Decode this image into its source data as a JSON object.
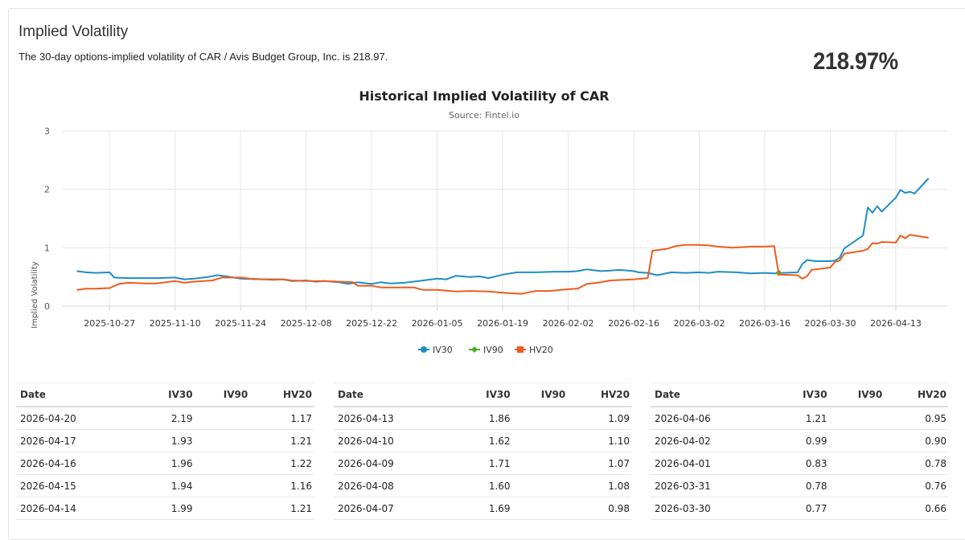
{
  "header": {
    "title": "Implied Volatility",
    "description": "The 30-day options-implied volatility of CAR / Avis Budget Group, Inc. is 218.97.",
    "big_value": "218.97%"
  },
  "chart_data": {
    "type": "line",
    "title": "Historical Implied Volatility of CAR",
    "subtitle": "Source: Fintel.io",
    "ylabel": "Implied Volatility",
    "xlabel": "",
    "ylim": [
      0,
      3
    ],
    "yticks": [
      0,
      1,
      2,
      3
    ],
    "xlim": [
      "2025-10-17",
      "2026-04-24"
    ],
    "xticks": [
      "2025-10-27",
      "2025-11-10",
      "2025-11-24",
      "2025-12-08",
      "2025-12-22",
      "2026-01-05",
      "2026-01-19",
      "2026-02-02",
      "2026-02-16",
      "2026-03-02",
      "2026-03-16",
      "2026-03-30",
      "2026-04-13"
    ],
    "grid": true,
    "legend_position": "bottom",
    "series": [
      {
        "name": "IV30",
        "color": "#1f8dc4",
        "points": [
          [
            "2025-10-20",
            0.6
          ],
          [
            "2025-10-22",
            0.58
          ],
          [
            "2025-10-24",
            0.57
          ],
          [
            "2025-10-27",
            0.58
          ],
          [
            "2025-10-28",
            0.49
          ],
          [
            "2025-10-31",
            0.48
          ],
          [
            "2025-11-03",
            0.48
          ],
          [
            "2025-11-06",
            0.48
          ],
          [
            "2025-11-10",
            0.49
          ],
          [
            "2025-11-12",
            0.46
          ],
          [
            "2025-11-14",
            0.47
          ],
          [
            "2025-11-17",
            0.5
          ],
          [
            "2025-11-19",
            0.53
          ],
          [
            "2025-11-21",
            0.51
          ],
          [
            "2025-11-24",
            0.47
          ],
          [
            "2025-11-28",
            0.46
          ],
          [
            "2025-12-03",
            0.46
          ],
          [
            "2025-12-05",
            0.43
          ],
          [
            "2025-12-08",
            0.44
          ],
          [
            "2025-12-10",
            0.42
          ],
          [
            "2025-12-12",
            0.43
          ],
          [
            "2025-12-15",
            0.41
          ],
          [
            "2025-12-17",
            0.38
          ],
          [
            "2025-12-19",
            0.41
          ],
          [
            "2025-12-22",
            0.38
          ],
          [
            "2025-12-24",
            0.41
          ],
          [
            "2025-12-26",
            0.39
          ],
          [
            "2025-12-29",
            0.4
          ],
          [
            "2025-12-31",
            0.42
          ],
          [
            "2026-01-05",
            0.47
          ],
          [
            "2026-01-07",
            0.46
          ],
          [
            "2026-01-09",
            0.52
          ],
          [
            "2026-01-12",
            0.5
          ],
          [
            "2026-01-14",
            0.51
          ],
          [
            "2026-01-16",
            0.48
          ],
          [
            "2026-01-19",
            0.54
          ],
          [
            "2026-01-22",
            0.58
          ],
          [
            "2026-01-26",
            0.58
          ],
          [
            "2026-01-30",
            0.59
          ],
          [
            "2026-02-02",
            0.59
          ],
          [
            "2026-02-04",
            0.6
          ],
          [
            "2026-02-06",
            0.63
          ],
          [
            "2026-02-09",
            0.6
          ],
          [
            "2026-02-11",
            0.61
          ],
          [
            "2026-02-13",
            0.62
          ],
          [
            "2026-02-16",
            0.6
          ],
          [
            "2026-02-17",
            0.58
          ],
          [
            "2026-02-19",
            0.57
          ],
          [
            "2026-02-21",
            0.53
          ],
          [
            "2026-02-24",
            0.58
          ],
          [
            "2026-02-27",
            0.57
          ],
          [
            "2026-03-02",
            0.58
          ],
          [
            "2026-03-04",
            0.57
          ],
          [
            "2026-03-06",
            0.59
          ],
          [
            "2026-03-10",
            0.58
          ],
          [
            "2026-03-13",
            0.56
          ],
          [
            "2026-03-16",
            0.57
          ],
          [
            "2026-03-18",
            0.56
          ],
          [
            "2026-03-20",
            0.57
          ],
          [
            "2026-03-23",
            0.58
          ],
          [
            "2026-03-24",
            0.72
          ],
          [
            "2026-03-25",
            0.79
          ],
          [
            "2026-03-27",
            0.77
          ],
          [
            "2026-03-30",
            0.77
          ],
          [
            "2026-03-31",
            0.78
          ],
          [
            "2026-04-01",
            0.83
          ],
          [
            "2026-04-02",
            0.99
          ],
          [
            "2026-04-06",
            1.21
          ],
          [
            "2026-04-07",
            1.69
          ],
          [
            "2026-04-08",
            1.6
          ],
          [
            "2026-04-09",
            1.71
          ],
          [
            "2026-04-10",
            1.62
          ],
          [
            "2026-04-13",
            1.86
          ],
          [
            "2026-04-14",
            1.99
          ],
          [
            "2026-04-15",
            1.94
          ],
          [
            "2026-04-16",
            1.96
          ],
          [
            "2026-04-17",
            1.93
          ],
          [
            "2026-04-20",
            2.19
          ]
        ]
      },
      {
        "name": "IV90",
        "color": "#4caf27",
        "points": [
          [
            "2026-03-19",
            0.57
          ]
        ]
      },
      {
        "name": "HV20",
        "color": "#ef5b1d",
        "points": [
          [
            "2025-10-20",
            0.28
          ],
          [
            "2025-10-22",
            0.3
          ],
          [
            "2025-10-24",
            0.3
          ],
          [
            "2025-10-27",
            0.31
          ],
          [
            "2025-10-29",
            0.38
          ],
          [
            "2025-10-31",
            0.4
          ],
          [
            "2025-11-04",
            0.39
          ],
          [
            "2025-11-06",
            0.39
          ],
          [
            "2025-11-10",
            0.43
          ],
          [
            "2025-11-12",
            0.4
          ],
          [
            "2025-11-14",
            0.42
          ],
          [
            "2025-11-18",
            0.44
          ],
          [
            "2025-11-20",
            0.49
          ],
          [
            "2025-11-24",
            0.49
          ],
          [
            "2025-11-26",
            0.47
          ],
          [
            "2025-12-01",
            0.45
          ],
          [
            "2025-12-03",
            0.46
          ],
          [
            "2025-12-05",
            0.44
          ],
          [
            "2025-12-08",
            0.43
          ],
          [
            "2025-12-12",
            0.43
          ],
          [
            "2025-12-15",
            0.42
          ],
          [
            "2025-12-18",
            0.41
          ],
          [
            "2025-12-19",
            0.35
          ],
          [
            "2025-12-22",
            0.35
          ],
          [
            "2025-12-24",
            0.32
          ],
          [
            "2025-12-29",
            0.32
          ],
          [
            "2025-12-31",
            0.32
          ],
          [
            "2026-01-02",
            0.28
          ],
          [
            "2026-01-05",
            0.28
          ],
          [
            "2026-01-09",
            0.25
          ],
          [
            "2026-01-12",
            0.26
          ],
          [
            "2026-01-16",
            0.25
          ],
          [
            "2026-01-19",
            0.23
          ],
          [
            "2026-01-23",
            0.21
          ],
          [
            "2026-01-26",
            0.26
          ],
          [
            "2026-01-29",
            0.26
          ],
          [
            "2026-02-02",
            0.29
          ],
          [
            "2026-02-04",
            0.3
          ],
          [
            "2026-02-06",
            0.38
          ],
          [
            "2026-02-09",
            0.41
          ],
          [
            "2026-02-11",
            0.44
          ],
          [
            "2026-02-16",
            0.46
          ],
          [
            "2026-02-19",
            0.48
          ],
          [
            "2026-02-20",
            0.95
          ],
          [
            "2026-02-23",
            0.98
          ],
          [
            "2026-02-25",
            1.03
          ],
          [
            "2026-02-27",
            1.05
          ],
          [
            "2026-03-02",
            1.05
          ],
          [
            "2026-03-04",
            1.04
          ],
          [
            "2026-03-06",
            1.02
          ],
          [
            "2026-03-09",
            1.0
          ],
          [
            "2026-03-11",
            1.01
          ],
          [
            "2026-03-13",
            1.02
          ],
          [
            "2026-03-16",
            1.02
          ],
          [
            "2026-03-18",
            1.03
          ],
          [
            "2026-03-19",
            0.54
          ],
          [
            "2026-03-23",
            0.53
          ],
          [
            "2026-03-24",
            0.47
          ],
          [
            "2026-03-25",
            0.51
          ],
          [
            "2026-03-26",
            0.62
          ],
          [
            "2026-03-30",
            0.66
          ],
          [
            "2026-03-31",
            0.76
          ],
          [
            "2026-04-01",
            0.78
          ],
          [
            "2026-04-02",
            0.9
          ],
          [
            "2026-04-06",
            0.95
          ],
          [
            "2026-04-07",
            0.98
          ],
          [
            "2026-04-08",
            1.08
          ],
          [
            "2026-04-09",
            1.07
          ],
          [
            "2026-04-10",
            1.1
          ],
          [
            "2026-04-13",
            1.09
          ],
          [
            "2026-04-14",
            1.21
          ],
          [
            "2026-04-15",
            1.16
          ],
          [
            "2026-04-16",
            1.22
          ],
          [
            "2026-04-17",
            1.21
          ],
          [
            "2026-04-20",
            1.17
          ]
        ]
      }
    ]
  },
  "tables": {
    "columns": [
      "Date",
      "IV30",
      "IV90",
      "HV20"
    ],
    "groups": [
      [
        [
          "2026-04-20",
          "2.19",
          "",
          "1.17"
        ],
        [
          "2026-04-17",
          "1.93",
          "",
          "1.21"
        ],
        [
          "2026-04-16",
          "1.96",
          "",
          "1.22"
        ],
        [
          "2026-04-15",
          "1.94",
          "",
          "1.16"
        ],
        [
          "2026-04-14",
          "1.99",
          "",
          "1.21"
        ]
      ],
      [
        [
          "2026-04-13",
          "1.86",
          "",
          "1.09"
        ],
        [
          "2026-04-10",
          "1.62",
          "",
          "1.10"
        ],
        [
          "2026-04-09",
          "1.71",
          "",
          "1.07"
        ],
        [
          "2026-04-08",
          "1.60",
          "",
          "1.08"
        ],
        [
          "2026-04-07",
          "1.69",
          "",
          "0.98"
        ]
      ],
      [
        [
          "2026-04-06",
          "1.21",
          "",
          "0.95"
        ],
        [
          "2026-04-02",
          "0.99",
          "",
          "0.90"
        ],
        [
          "2026-04-01",
          "0.83",
          "",
          "0.78"
        ],
        [
          "2026-03-31",
          "0.78",
          "",
          "0.76"
        ],
        [
          "2026-03-30",
          "0.77",
          "",
          "0.66"
        ]
      ]
    ]
  }
}
